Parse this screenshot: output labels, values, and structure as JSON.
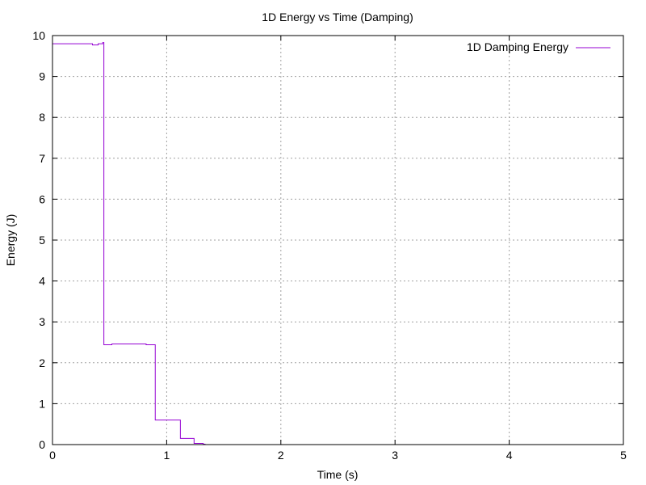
{
  "chart_data": {
    "type": "line",
    "title": "1D Energy vs Time (Damping)",
    "xlabel": "Time (s)",
    "ylabel": "Energy (J)",
    "xlim": [
      0,
      5
    ],
    "ylim": [
      0,
      10
    ],
    "xticks": [
      0,
      1,
      2,
      3,
      4,
      5
    ],
    "yticks": [
      0,
      1,
      2,
      3,
      4,
      5,
      6,
      7,
      8,
      9,
      10
    ],
    "grid": true,
    "legend_position": "top-right",
    "series": [
      {
        "name": "1D Damping Energy",
        "color": "#9400d3",
        "x": [
          0,
          0.35,
          0.35,
          0.4,
          0.4,
          0.44,
          0.44,
          0.45,
          0.45,
          0.52,
          0.52,
          0.82,
          0.82,
          0.9,
          0.9,
          1.12,
          1.12,
          1.24,
          1.24,
          1.32,
          1.32,
          1.34
        ],
        "y": [
          9.8,
          9.8,
          9.77,
          9.77,
          9.8,
          9.8,
          9.83,
          9.83,
          2.44,
          2.44,
          2.46,
          2.46,
          2.44,
          2.44,
          0.6,
          0.6,
          0.15,
          0.15,
          0.03,
          0.03,
          0.01,
          0.01
        ]
      }
    ]
  }
}
